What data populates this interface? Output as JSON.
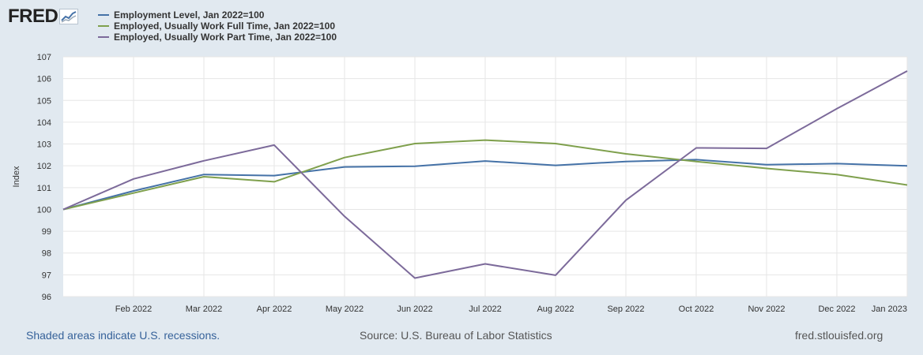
{
  "header": {
    "logo_text": "FRED"
  },
  "colors": {
    "background": "#e1e9f0",
    "plot_background": "#ffffff",
    "grid": "#e6e6e6",
    "employment_level": "#4572a7",
    "full_time": "#7fa04d",
    "part_time": "#7c6a9a"
  },
  "chart_data": {
    "type": "line",
    "title": "",
    "xlabel": "",
    "ylabel": "Index",
    "ylim": [
      96,
      107
    ],
    "yticks": [
      96,
      97,
      98,
      99,
      100,
      101,
      102,
      103,
      104,
      105,
      106,
      107
    ],
    "x": [
      "Jan 2022",
      "Feb 2022",
      "Mar 2022",
      "Apr 2022",
      "May 2022",
      "Jun 2022",
      "Jul 2022",
      "Aug 2022",
      "Sep 2022",
      "Oct 2022",
      "Nov 2022",
      "Dec 2022",
      "Jan 2023"
    ],
    "xtick_labels": [
      "Feb 2022",
      "Mar 2022",
      "Apr 2022",
      "May 2022",
      "Jun 2022",
      "Jul 2022",
      "Aug 2022",
      "Sep 2022",
      "Oct 2022",
      "Nov 2022",
      "Dec 2022",
      "Jan 2023"
    ],
    "grid": true,
    "legend_position": "top-left",
    "series": [
      {
        "name": "Employment Level, Jan 2022=100",
        "color": "#4572a7",
        "values": [
          100.0,
          100.85,
          101.6,
          101.55,
          101.95,
          101.98,
          102.22,
          102.02,
          102.2,
          102.28,
          102.05,
          102.1,
          102.0
        ]
      },
      {
        "name": "Employed, Usually Work Full Time, Jan 2022=100",
        "color": "#7fa04d",
        "values": [
          100.0,
          100.75,
          101.5,
          101.27,
          102.38,
          103.02,
          103.18,
          103.02,
          102.55,
          102.2,
          101.88,
          101.6,
          101.12
        ]
      },
      {
        "name": "Employed, Usually Work Part Time, Jan 2022=100",
        "color": "#7c6a9a",
        "values": [
          100.0,
          101.4,
          102.23,
          102.95,
          99.68,
          96.85,
          97.5,
          96.98,
          100.42,
          102.82,
          102.8,
          104.62,
          106.35
        ]
      }
    ]
  },
  "footer": {
    "note": "Shaded areas indicate U.S. recessions.",
    "source": "Source: U.S. Bureau of Labor Statistics",
    "url": "fred.stlouisfed.org"
  }
}
